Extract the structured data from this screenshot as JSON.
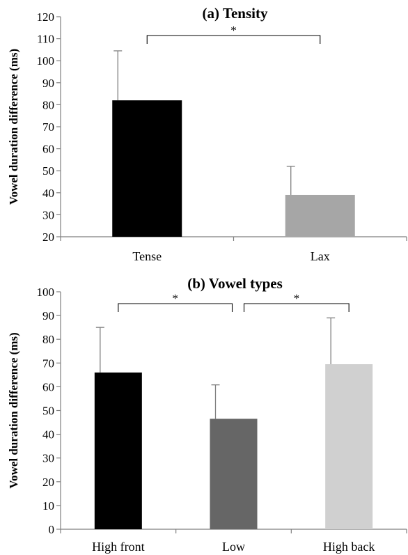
{
  "chart_data": [
    {
      "type": "bar",
      "title": "(a) Tensity",
      "ylabel": "Vowel duration difference (ms)",
      "xlabel": "",
      "ylim": [
        20,
        120
      ],
      "yticks": [
        20,
        30,
        40,
        50,
        60,
        70,
        80,
        90,
        100,
        110,
        120
      ],
      "categories": [
        "Tense",
        "Lax"
      ],
      "values": [
        82,
        39
      ],
      "errors": [
        22.5,
        13
      ],
      "colors": [
        "#000000",
        "#a6a6a6"
      ],
      "significance": [
        {
          "from": 0,
          "to": 1,
          "label": "*"
        }
      ]
    },
    {
      "type": "bar",
      "title": "(b) Vowel types",
      "ylabel": "Vowel duration difference (ms)",
      "xlabel": "",
      "ylim": [
        0,
        100
      ],
      "yticks": [
        0,
        10,
        20,
        30,
        40,
        50,
        60,
        70,
        80,
        90,
        100
      ],
      "categories": [
        "High front",
        "Low",
        "High back"
      ],
      "values": [
        66,
        46.5,
        69.5
      ],
      "errors": [
        19,
        14.3,
        19.5
      ],
      "colors": [
        "#000000",
        "#666666",
        "#d0d0d0"
      ],
      "significance": [
        {
          "from": 0,
          "to": 1,
          "label": "*"
        },
        {
          "from": 1,
          "to": 2,
          "label": "*"
        }
      ]
    }
  ]
}
